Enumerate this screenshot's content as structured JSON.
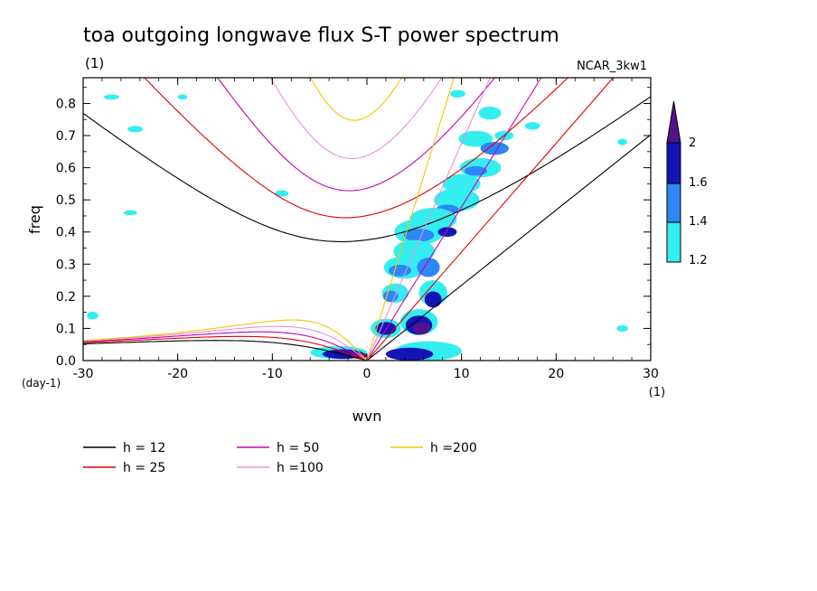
{
  "chart_data": {
    "type": "contour",
    "title": "toa outgoing longwave flux S-T power spectrum",
    "subtitle_left": "(1)",
    "subtitle_right": "NCAR_3kw1",
    "xlabel": "wvn",
    "ylabel": "freq",
    "x_unit_label": "(1)",
    "y_unit_label": "(day-1)",
    "xlim": [
      -30,
      30
    ],
    "ylim": [
      0,
      0.88
    ],
    "xticks": [
      -30,
      -20,
      -10,
      0,
      10,
      20,
      30
    ],
    "xtick_labels": [
      "-30",
      "-20",
      "-10",
      "0",
      "10",
      "20",
      "30"
    ],
    "yticks": [
      0,
      0.1,
      0.2,
      0.3,
      0.4,
      0.5,
      0.6,
      0.7,
      0.8
    ],
    "ytick_labels": [
      "0.0",
      "0.1",
      "0.2",
      "0.3",
      "0.4",
      "0.5",
      "0.6",
      "0.7",
      "0.8"
    ],
    "colorbar": {
      "levels": [
        1.2,
        1.4,
        1.6,
        2
      ],
      "labels": [
        "1.2",
        "1.4",
        "1.6",
        "2"
      ],
      "colors": [
        "#33eef0",
        "#2f86f5",
        "#1414b4",
        "#55128c"
      ]
    },
    "series": [
      {
        "name": "h = 12",
        "h": 12,
        "color": "#000000"
      },
      {
        "name": "h = 25",
        "h": 25,
        "color": "#e00000"
      },
      {
        "name": "h = 50",
        "h": 50,
        "color": "#c800b4"
      },
      {
        "name": "h =100",
        "h": 100,
        "color": "#e890dc"
      },
      {
        "name": "h =200",
        "h": 200,
        "color": "#f0c800"
      }
    ],
    "blobs": [
      {
        "x": 9.6,
        "y": 0.83,
        "rx": 0.8,
        "ry": 0.012,
        "level": 1
      },
      {
        "x": 13.0,
        "y": 0.77,
        "rx": 1.2,
        "ry": 0.02,
        "level": 1
      },
      {
        "x": 11.5,
        "y": 0.69,
        "rx": 1.8,
        "ry": 0.025,
        "level": 1
      },
      {
        "x": 13.5,
        "y": 0.66,
        "rx": 1.5,
        "ry": 0.02,
        "level": 2
      },
      {
        "x": 14.5,
        "y": 0.7,
        "rx": 1.0,
        "ry": 0.015,
        "level": 1
      },
      {
        "x": 12.0,
        "y": 0.6,
        "rx": 2.2,
        "ry": 0.03,
        "level": 1
      },
      {
        "x": 11.5,
        "y": 0.59,
        "rx": 1.2,
        "ry": 0.015,
        "level": 2
      },
      {
        "x": 10.0,
        "y": 0.55,
        "rx": 2.0,
        "ry": 0.03,
        "level": 1
      },
      {
        "x": 9.5,
        "y": 0.5,
        "rx": 2.4,
        "ry": 0.035,
        "level": 1
      },
      {
        "x": 8.5,
        "y": 0.47,
        "rx": 1.2,
        "ry": 0.015,
        "level": 2
      },
      {
        "x": 7.0,
        "y": 0.44,
        "rx": 2.5,
        "ry": 0.035,
        "level": 1
      },
      {
        "x": 5.5,
        "y": 0.4,
        "rx": 2.6,
        "ry": 0.04,
        "level": 1
      },
      {
        "x": 5.5,
        "y": 0.39,
        "rx": 1.6,
        "ry": 0.02,
        "level": 2
      },
      {
        "x": 8.5,
        "y": 0.4,
        "rx": 1.0,
        "ry": 0.015,
        "level": 3
      },
      {
        "x": 5.0,
        "y": 0.34,
        "rx": 2.2,
        "ry": 0.035,
        "level": 1
      },
      {
        "x": 4.0,
        "y": 0.29,
        "rx": 2.2,
        "ry": 0.035,
        "level": 1
      },
      {
        "x": 3.5,
        "y": 0.28,
        "rx": 1.2,
        "ry": 0.018,
        "level": 2
      },
      {
        "x": 6.5,
        "y": 0.29,
        "rx": 1.2,
        "ry": 0.03,
        "level": 2
      },
      {
        "x": 3.0,
        "y": 0.21,
        "rx": 1.4,
        "ry": 0.03,
        "level": 1
      },
      {
        "x": 2.5,
        "y": 0.2,
        "rx": 0.8,
        "ry": 0.018,
        "level": 2
      },
      {
        "x": 7.0,
        "y": 0.21,
        "rx": 1.5,
        "ry": 0.04,
        "level": 1
      },
      {
        "x": 7.0,
        "y": 0.19,
        "rx": 0.9,
        "ry": 0.025,
        "level": 3
      },
      {
        "x": 2.0,
        "y": 0.1,
        "rx": 1.6,
        "ry": 0.03,
        "level": 1
      },
      {
        "x": 2.0,
        "y": 0.1,
        "rx": 1.1,
        "ry": 0.02,
        "level": 3
      },
      {
        "x": 5.5,
        "y": 0.12,
        "rx": 2.0,
        "ry": 0.04,
        "level": 1
      },
      {
        "x": 5.5,
        "y": 0.11,
        "rx": 1.4,
        "ry": 0.03,
        "level": 3
      },
      {
        "x": 5.8,
        "y": 0.1,
        "rx": 0.9,
        "ry": 0.018,
        "level": 4
      },
      {
        "x": 6.5,
        "y": 0.03,
        "rx": 3.5,
        "ry": 0.03,
        "level": 1
      },
      {
        "x": 4.5,
        "y": 0.02,
        "rx": 2.5,
        "ry": 0.02,
        "level": 3
      },
      {
        "x": -3.0,
        "y": 0.025,
        "rx": 3.0,
        "ry": 0.02,
        "level": 1
      },
      {
        "x": -2.5,
        "y": 0.02,
        "rx": 2.2,
        "ry": 0.015,
        "level": 3
      },
      {
        "x": -0.8,
        "y": 0.015,
        "rx": 0.8,
        "ry": 0.01,
        "level": 4
      },
      {
        "x": -27.0,
        "y": 0.82,
        "rx": 0.8,
        "ry": 0.008,
        "level": 1
      },
      {
        "x": -24.5,
        "y": 0.72,
        "rx": 0.8,
        "ry": 0.01,
        "level": 1
      },
      {
        "x": -25.0,
        "y": 0.46,
        "rx": 0.7,
        "ry": 0.008,
        "level": 1
      },
      {
        "x": -19.5,
        "y": 0.82,
        "rx": 0.5,
        "ry": 0.008,
        "level": 1
      },
      {
        "x": -9.0,
        "y": 0.52,
        "rx": 0.7,
        "ry": 0.01,
        "level": 1
      },
      {
        "x": 17.5,
        "y": 0.73,
        "rx": 0.8,
        "ry": 0.012,
        "level": 1
      },
      {
        "x": 27.0,
        "y": 0.68,
        "rx": 0.5,
        "ry": 0.01,
        "level": 1
      },
      {
        "x": -29.0,
        "y": 0.14,
        "rx": 0.6,
        "ry": 0.012,
        "level": 1
      },
      {
        "x": 27.0,
        "y": 0.1,
        "rx": 0.6,
        "ry": 0.01,
        "level": 1
      }
    ],
    "legend_placement": "bottom"
  }
}
